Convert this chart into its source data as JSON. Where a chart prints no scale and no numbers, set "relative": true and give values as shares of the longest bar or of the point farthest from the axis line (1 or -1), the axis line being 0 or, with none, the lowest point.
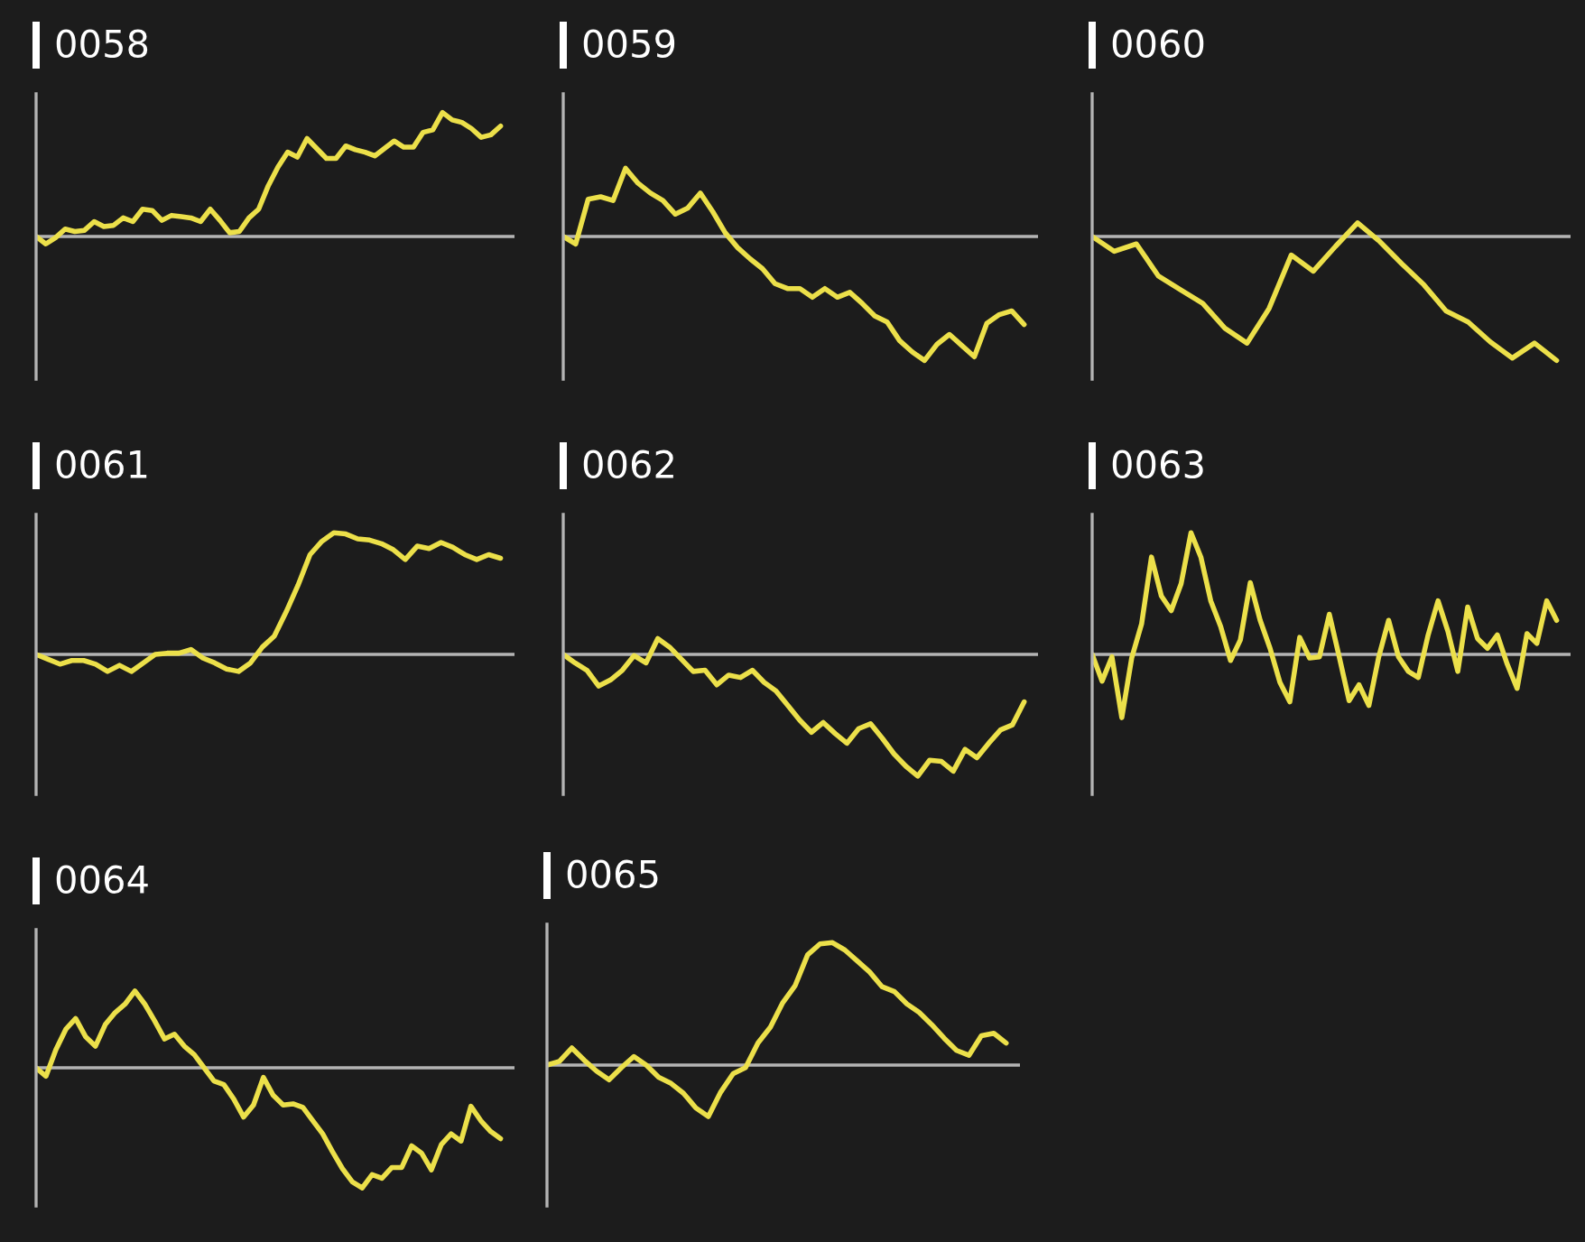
{
  "chart_data": [
    {
      "type": "line",
      "title": "0058",
      "relative": true,
      "color": "#ece04a",
      "categories": [
        null,
        null,
        null,
        null,
        null,
        null,
        null,
        null,
        null,
        null,
        null,
        null,
        null,
        null,
        null,
        null,
        null,
        null,
        null,
        null,
        null,
        null,
        null,
        null,
        null,
        null,
        null,
        null,
        null,
        null,
        null,
        null,
        null,
        null,
        null,
        null,
        null,
        null,
        null,
        null,
        null,
        null,
        null,
        null,
        null,
        null,
        null,
        null,
        null
      ],
      "values": [
        0,
        -0.06,
        -0.01,
        0.06,
        0.04,
        0.05,
        0.12,
        0.08,
        0.09,
        0.15,
        0.12,
        0.22,
        0.21,
        0.13,
        0.17,
        0.16,
        0.15,
        0.12,
        0.22,
        0.13,
        0.03,
        0.04,
        0.15,
        0.22,
        0.41,
        0.56,
        0.68,
        0.64,
        0.79,
        0.71,
        0.63,
        0.63,
        0.73,
        0.7,
        0.68,
        0.65,
        0.71,
        0.77,
        0.72,
        0.72,
        0.84,
        0.86,
        1.0,
        0.94,
        0.92,
        0.87,
        0.8,
        0.82,
        0.89
      ]
    },
    {
      "type": "line",
      "title": "0059",
      "relative": true,
      "color": "#ece04a",
      "categories": [
        null,
        null,
        null,
        null,
        null,
        null,
        null,
        null,
        null,
        null,
        null,
        null,
        null,
        null,
        null,
        null,
        null,
        null,
        null,
        null,
        null,
        null,
        null,
        null,
        null,
        null,
        null,
        null,
        null,
        null,
        null,
        null,
        null,
        null,
        null,
        null,
        null,
        null
      ],
      "values": [
        0,
        -0.06,
        0.3,
        0.32,
        0.29,
        0.55,
        0.43,
        0.35,
        0.29,
        0.18,
        0.23,
        0.35,
        0.2,
        0.03,
        -0.09,
        -0.18,
        -0.26,
        -0.38,
        -0.42,
        -0.42,
        -0.49,
        -0.42,
        -0.49,
        -0.45,
        -0.54,
        -0.64,
        -0.69,
        -0.84,
        -0.93,
        -1.0,
        -0.87,
        -0.79,
        -0.88,
        -0.97,
        -0.7,
        -0.63,
        -0.6,
        -0.71
      ]
    },
    {
      "type": "line",
      "title": "0060",
      "relative": true,
      "color": "#ece04a",
      "categories": [
        null,
        null,
        null,
        null,
        null,
        null,
        null,
        null,
        null,
        null,
        null,
        null,
        null,
        null,
        null,
        null,
        null,
        null,
        null,
        null,
        null,
        null
      ],
      "values": [
        0,
        -0.12,
        -0.06,
        -0.32,
        -0.43,
        -0.54,
        -0.74,
        -0.86,
        -0.58,
        -0.15,
        -0.28,
        -0.08,
        0.11,
        -0.04,
        -0.22,
        -0.39,
        -0.6,
        -0.69,
        -0.85,
        -0.98,
        -0.86,
        -1.0
      ]
    },
    {
      "type": "line",
      "title": "0061",
      "relative": true,
      "color": "#ece04a",
      "categories": [
        null,
        null,
        null,
        null,
        null,
        null,
        null,
        null,
        null,
        null,
        null,
        null,
        null,
        null,
        null,
        null,
        null,
        null,
        null,
        null,
        null,
        null,
        null,
        null,
        null,
        null,
        null,
        null,
        null,
        null,
        null,
        null,
        null,
        null,
        null,
        null,
        null,
        null,
        null,
        null
      ],
      "values": [
        0,
        -0.04,
        -0.08,
        -0.05,
        -0.05,
        -0.08,
        -0.14,
        -0.09,
        -0.14,
        -0.07,
        0,
        0.01,
        0.01,
        0.04,
        -0.03,
        -0.07,
        -0.12,
        -0.14,
        -0.07,
        0.06,
        0.15,
        0.35,
        0.57,
        0.82,
        0.93,
        1.0,
        0.99,
        0.95,
        0.94,
        0.91,
        0.86,
        0.78,
        0.89,
        0.87,
        0.92,
        0.88,
        0.82,
        0.78,
        0.82,
        0.79
      ]
    },
    {
      "type": "line",
      "title": "0062",
      "relative": true,
      "color": "#ece04a",
      "categories": [
        null,
        null,
        null,
        null,
        null,
        null,
        null,
        null,
        null,
        null,
        null,
        null,
        null,
        null,
        null,
        null,
        null,
        null,
        null,
        null,
        null,
        null,
        null,
        null,
        null,
        null,
        null,
        null,
        null,
        null,
        null,
        null,
        null,
        null,
        null,
        null,
        null,
        null,
        null,
        null
      ],
      "values": [
        0,
        -0.07,
        -0.13,
        -0.26,
        -0.21,
        -0.13,
        -0.01,
        -0.07,
        0.13,
        0.06,
        -0.04,
        -0.14,
        -0.13,
        -0.25,
        -0.17,
        -0.19,
        -0.13,
        -0.23,
        -0.3,
        -0.42,
        -0.54,
        -0.64,
        -0.56,
        -0.65,
        -0.73,
        -0.61,
        -0.57,
        -0.69,
        -0.82,
        -0.92,
        -1.0,
        -0.87,
        -0.88,
        -0.96,
        -0.78,
        -0.85,
        -0.73,
        -0.62,
        -0.58,
        -0.39
      ]
    },
    {
      "type": "line",
      "title": "0063",
      "relative": true,
      "color": "#ece04a",
      "categories": [
        null,
        null,
        null,
        null,
        null,
        null,
        null,
        null,
        null,
        null,
        null,
        null,
        null,
        null,
        null,
        null,
        null,
        null,
        null,
        null,
        null,
        null,
        null,
        null,
        null,
        null,
        null,
        null,
        null,
        null,
        null,
        null,
        null,
        null,
        null,
        null,
        null,
        null,
        null,
        null,
        null,
        null,
        null,
        null,
        null,
        null,
        null,
        null
      ],
      "values": [
        0,
        -0.22,
        -0.02,
        -0.52,
        -0.03,
        0.25,
        0.8,
        0.48,
        0.36,
        0.58,
        1.0,
        0.8,
        0.44,
        0.23,
        -0.05,
        0.12,
        0.59,
        0.28,
        0.05,
        -0.23,
        -0.39,
        0.14,
        -0.03,
        -0.02,
        0.33,
        -0.02,
        -0.38,
        -0.25,
        -0.42,
        -0.02,
        0.28,
        -0.02,
        -0.14,
        -0.19,
        0.16,
        0.44,
        0.19,
        -0.14,
        0.39,
        0.13,
        0.05,
        0.16,
        -0.08,
        -0.28,
        0.17,
        0.09,
        0.44,
        0.28
      ]
    },
    {
      "type": "line",
      "title": "0064",
      "relative": true,
      "color": "#ece04a",
      "categories": [
        null,
        null,
        null,
        null,
        null,
        null,
        null,
        null,
        null,
        null,
        null,
        null,
        null,
        null,
        null,
        null,
        null,
        null,
        null,
        null,
        null,
        null,
        null,
        null,
        null,
        null,
        null,
        null,
        null,
        null,
        null,
        null,
        null,
        null,
        null,
        null,
        null,
        null,
        null,
        null,
        null,
        null,
        null,
        null,
        null,
        null,
        null,
        null
      ],
      "values": [
        0,
        -0.07,
        0.15,
        0.32,
        0.41,
        0.26,
        0.18,
        0.36,
        0.46,
        0.53,
        0.64,
        0.53,
        0.39,
        0.24,
        0.28,
        0.18,
        0.11,
        0,
        -0.11,
        -0.14,
        -0.26,
        -0.41,
        -0.31,
        -0.08,
        -0.23,
        -0.31,
        -0.3,
        -0.33,
        -0.44,
        -0.55,
        -0.7,
        -0.84,
        -0.95,
        -1.0,
        -0.89,
        -0.92,
        -0.83,
        -0.83,
        -0.65,
        -0.71,
        -0.85,
        -0.64,
        -0.55,
        -0.61,
        -0.32,
        -0.44,
        -0.53,
        -0.59
      ]
    },
    {
      "type": "line",
      "title": "0065",
      "relative": true,
      "color": "#ece04a",
      "categories": [
        null,
        null,
        null,
        null,
        null,
        null,
        null,
        null,
        null,
        null,
        null,
        null,
        null,
        null,
        null,
        null,
        null,
        null,
        null,
        null,
        null,
        null,
        null,
        null,
        null,
        null,
        null,
        null,
        null,
        null,
        null,
        null,
        null,
        null,
        null,
        null,
        null,
        null
      ],
      "values": [
        0,
        0.03,
        0.14,
        0.04,
        -0.05,
        -0.12,
        -0.02,
        0.07,
        0,
        -0.1,
        -0.15,
        -0.23,
        -0.35,
        -0.42,
        -0.22,
        -0.07,
        -0.02,
        0.18,
        0.31,
        0.51,
        0.65,
        0.9,
        0.99,
        1.0,
        0.94,
        0.85,
        0.76,
        0.64,
        0.6,
        0.5,
        0.43,
        0.33,
        0.22,
        0.12,
        0.08,
        0.24,
        0.26,
        0.18
      ]
    }
  ]
}
